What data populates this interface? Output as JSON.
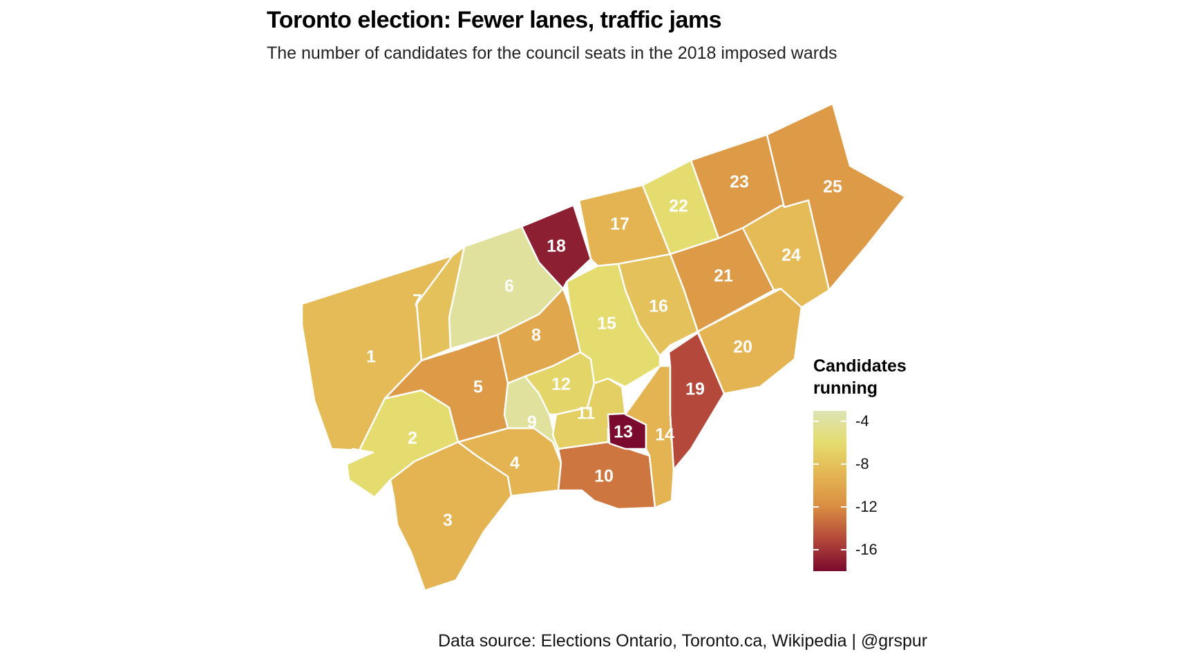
{
  "title": "Toronto election: Fewer lanes, traffic jams",
  "subtitle": "The number of candidates for the council seats in the 2018 imposed wards",
  "caption": "Data source: Elections Ontario, Toronto.ca, Wikipedia  |  @grspur",
  "legend": {
    "title": "Candidates running",
    "ticks": [
      "-4",
      "-8",
      "-12",
      "-16"
    ],
    "min": -18,
    "max": -3,
    "colors": [
      "#dde3b4",
      "#e4dc6e",
      "#e4b452",
      "#d98d42",
      "#b4483a",
      "#7a0a2e"
    ]
  },
  "wards": [
    {
      "id": "1",
      "value": -8.5
    },
    {
      "id": "2",
      "value": -6
    },
    {
      "id": "3",
      "value": -9
    },
    {
      "id": "4",
      "value": -9
    },
    {
      "id": "5",
      "value": -11
    },
    {
      "id": "6",
      "value": -4
    },
    {
      "id": "7",
      "value": -8
    },
    {
      "id": "8",
      "value": -10
    },
    {
      "id": "9",
      "value": -4
    },
    {
      "id": "10",
      "value": -13
    },
    {
      "id": "11",
      "value": -7
    },
    {
      "id": "12",
      "value": -6.5
    },
    {
      "id": "13",
      "value": -18
    },
    {
      "id": "14",
      "value": -9
    },
    {
      "id": "15",
      "value": -6
    },
    {
      "id": "16",
      "value": -8
    },
    {
      "id": "17",
      "value": -9
    },
    {
      "id": "18",
      "value": -17
    },
    {
      "id": "19",
      "value": -15
    },
    {
      "id": "20",
      "value": -9
    },
    {
      "id": "21",
      "value": -11
    },
    {
      "id": "22",
      "value": -6
    },
    {
      "id": "23",
      "value": -11
    },
    {
      "id": "24",
      "value": -8.5
    },
    {
      "id": "25",
      "value": -11
    }
  ]
}
